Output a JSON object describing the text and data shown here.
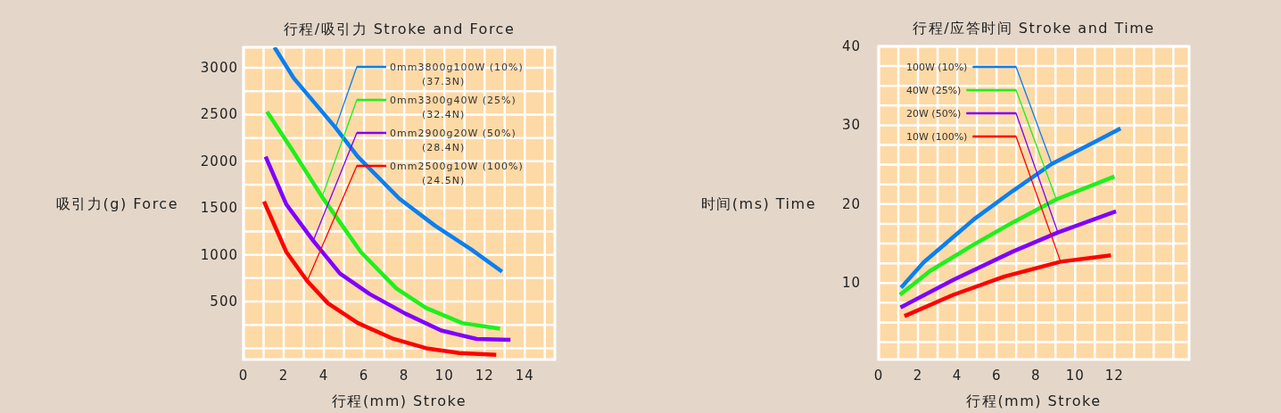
{
  "chart_data": [
    {
      "type": "line",
      "title": "行程/吸引力 Stroke and Force",
      "xlabel": "行程(mm) Stroke",
      "ylabel": "吸引力(g) Force",
      "xlim": [
        0,
        15.5
      ],
      "ylim": [
        -120,
        3220
      ],
      "xticks": [
        0,
        {
          "value": 1,
          "label": null
        },
        2,
        {
          "value": 3,
          "label": null
        },
        4,
        {
          "value": 5,
          "label": null
        },
        6,
        {
          "value": 7,
          "label": null
        },
        8,
        {
          "value": 9,
          "label": null
        },
        10,
        {
          "value": 11,
          "label": null
        },
        12,
        {
          "value": 13,
          "label": null
        },
        14,
        {
          "value": 15,
          "label": null
        }
      ],
      "yticks": [
        {
          "value": 0,
          "label": null
        },
        {
          "value": 250,
          "label": null
        },
        500,
        {
          "value": 750,
          "label": null
        },
        1000,
        {
          "value": 1250,
          "label": null
        },
        1500,
        {
          "value": 1750,
          "label": null
        },
        2000,
        {
          "value": 2250,
          "label": null
        },
        2500,
        {
          "value": 2750,
          "label": null
        },
        3000
      ],
      "grid": true,
      "series": [
        {
          "color": "#0a7ff0",
          "x": [
            1.54,
            2.5,
            4.58,
            5.69,
            7.76,
            9.54,
            11.32,
            12.87
          ],
          "values": [
            3220,
            2890,
            2360,
            2050,
            1600,
            1310,
            1060,
            820
          ]
        },
        {
          "color": "#1ff01a",
          "x": [
            1.17,
            2.43,
            3.91,
            5.84,
            7.61,
            9.1,
            10.88,
            12.77
          ],
          "values": [
            2530,
            2120,
            1620,
            1030,
            640,
            430,
            270,
            210
          ]
        },
        {
          "color": "#7f00ff",
          "x": [
            1.1,
            2.13,
            3.47,
            4.8,
            6.28,
            8.06,
            9.84,
            11.61,
            13.29
          ],
          "values": [
            2050,
            1540,
            1150,
            800,
            580,
            370,
            190,
            100,
            90
          ]
        },
        {
          "color": "#ff0000",
          "x": [
            1.02,
            2.13,
            3.17,
            4.21,
            5.69,
            7.47,
            9.1,
            10.72,
            12.58
          ],
          "values": [
            1570,
            1030,
            720,
            480,
            270,
            100,
            0,
            -50,
            -70
          ]
        }
      ],
      "annotations": [
        {
          "text": "0mm3800g100W  (10%)\n(37.3N)",
          "x": 4.58,
          "y": 2360
        },
        {
          "text": "0mm3300g40W  (25%)\n(32.4N)",
          "x": 3.91,
          "y": 1620
        },
        {
          "text": "0mm2900g20W  (50%)\n(28.4N)",
          "x": 3.47,
          "y": 1150
        },
        {
          "text": "0mm2500g10W  (100%)\n(24.5N)",
          "x": 3.17,
          "y": 720
        }
      ]
    },
    {
      "type": "line",
      "title": "行程/应答时间 Stroke and Time",
      "xlabel": "行程(mm) Stroke",
      "ylabel": "时间(ms) Time",
      "xlim": [
        0,
        15.8
      ],
      "ylim": [
        0.3,
        40
      ],
      "xticks": [
        0,
        {
          "value": 1,
          "label": null
        },
        2,
        {
          "value": 3,
          "label": null
        },
        4,
        {
          "value": 5,
          "label": null
        },
        6,
        {
          "value": 7,
          "label": null
        },
        8,
        {
          "value": 9,
          "label": null
        },
        10,
        {
          "value": 11,
          "label": null
        },
        12,
        {
          "value": 13,
          "label": null
        },
        {
          "value": 14,
          "label": null
        },
        {
          "value": 15,
          "label": null
        }
      ],
      "yticks": [
        {
          "value": 2.5,
          "label": null
        },
        {
          "value": 5,
          "label": null
        },
        {
          "value": 7.5,
          "label": null
        },
        10,
        {
          "value": 12.5,
          "label": null
        },
        {
          "value": 15,
          "label": null
        },
        {
          "value": 17.5,
          "label": null
        },
        20,
        {
          "value": 22.5,
          "label": null
        },
        {
          "value": 25,
          "label": null
        },
        {
          "value": 27.5,
          "label": null
        },
        30,
        {
          "value": 32.5,
          "label": null
        },
        {
          "value": 35,
          "label": null
        },
        {
          "value": 37.5,
          "label": null
        },
        40
      ],
      "grid": true,
      "series": [
        {
          "color": "#0a7ff0",
          "x": [
            1.14,
            2.28,
            4.86,
            6.84,
            8.81,
            10.94,
            12.31
          ],
          "values": [
            9.4,
            12.6,
            18.1,
            21.7,
            25.1,
            27.8,
            29.6
          ]
        },
        {
          "color": "#1ff01a",
          "x": [
            1.08,
            2.6,
            4.86,
            6.84,
            9.04,
            12.0
          ],
          "values": [
            8.5,
            11.5,
            14.9,
            17.7,
            20.6,
            23.5
          ]
        },
        {
          "color": "#7f00ff",
          "x": [
            1.11,
            3.8,
            6.84,
            9.12,
            12.08
          ],
          "values": [
            6.9,
            10.4,
            14.0,
            16.4,
            19.1
          ]
        },
        {
          "color": "#ff0000",
          "x": [
            1.31,
            3.8,
            6.38,
            9.26,
            11.82
          ],
          "values": [
            5.8,
            8.5,
            10.8,
            12.7,
            13.5
          ]
        }
      ],
      "annotations": [
        {
          "text": "100W  (10%)",
          "x": 8.81,
          "y": 25.1
        },
        {
          "text": "40W  (25%)",
          "x": 9.04,
          "y": 20.6
        },
        {
          "text": "20W  (50%)",
          "x": 9.12,
          "y": 16.4
        },
        {
          "text": "10W  (100%)",
          "x": 9.26,
          "y": 12.7
        }
      ]
    }
  ]
}
